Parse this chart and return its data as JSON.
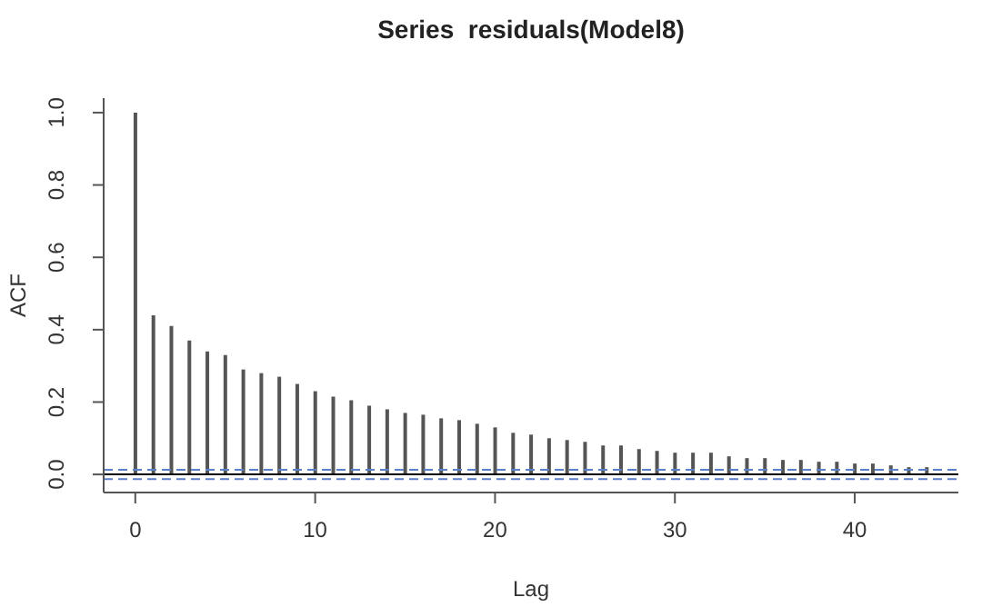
{
  "chart_data": {
    "type": "bar",
    "title": "Series  residuals(Model8)",
    "xlabel": "Lag",
    "ylabel": "ACF",
    "x": [
      0,
      1,
      2,
      3,
      4,
      5,
      6,
      7,
      8,
      9,
      10,
      11,
      12,
      13,
      14,
      15,
      16,
      17,
      18,
      19,
      20,
      21,
      22,
      23,
      24,
      25,
      26,
      27,
      28,
      29,
      30,
      31,
      32,
      33,
      34,
      35,
      36,
      37,
      38,
      39,
      40,
      41,
      42,
      43,
      44
    ],
    "values": [
      1.0,
      0.44,
      0.41,
      0.37,
      0.34,
      0.33,
      0.29,
      0.28,
      0.27,
      0.25,
      0.23,
      0.215,
      0.205,
      0.19,
      0.18,
      0.17,
      0.165,
      0.155,
      0.15,
      0.14,
      0.13,
      0.115,
      0.11,
      0.1,
      0.095,
      0.09,
      0.08,
      0.08,
      0.07,
      0.065,
      0.06,
      0.06,
      0.06,
      0.05,
      0.045,
      0.045,
      0.04,
      0.04,
      0.035,
      0.035,
      0.03,
      0.03,
      0.025,
      0.02,
      0.02
    ],
    "color": "#555555",
    "xlim": [
      -1.76,
      45.76
    ],
    "xticks": [
      0,
      10,
      20,
      30,
      40
    ],
    "ylim": [
      -0.05,
      1.04
    ],
    "yticks": [
      {
        "value": 0,
        "label": "0.0"
      },
      {
        "value": 0.2,
        "label": "0.2"
      },
      {
        "value": 0.4,
        "label": "0.4"
      },
      {
        "value": 0.6,
        "label": "0.6"
      },
      {
        "value": 0.8,
        "label": "0.8"
      },
      {
        "value": 1,
        "label": "1.0"
      }
    ],
    "ref_lines": [
      {
        "axis": "y",
        "value": 0,
        "color": "#000000",
        "line_style": "solid"
      },
      {
        "axis": "y",
        "value": 0.013,
        "color": "#5b7fc9",
        "line_style": "dashed"
      },
      {
        "axis": "y",
        "value": -0.013,
        "color": "#5b7fc9",
        "line_style": "dashed"
      }
    ],
    "grid": false
  }
}
